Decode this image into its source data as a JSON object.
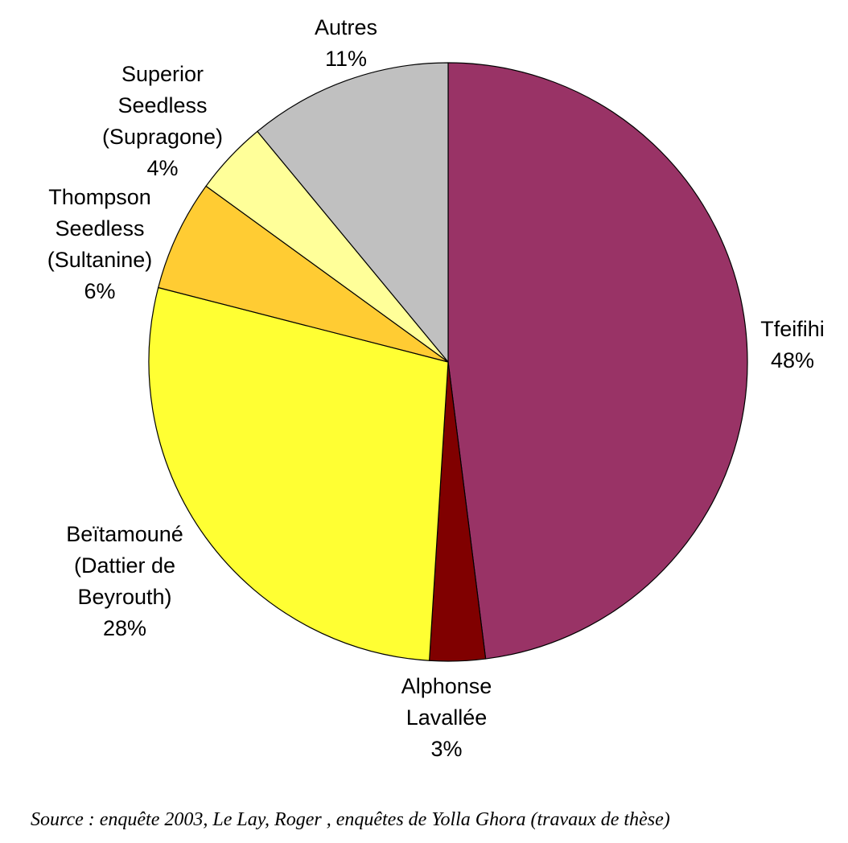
{
  "chart_data": {
    "type": "pie",
    "slices": [
      {
        "label": [
          "Tfeifihi"
        ],
        "percent_label": "48%",
        "value": 48,
        "color": "#993366"
      },
      {
        "label": [
          "Alphonse",
          "Lavallée"
        ],
        "percent_label": "3%",
        "value": 3,
        "color": "#800000"
      },
      {
        "label": [
          "Beïtamouné",
          "(Dattier de",
          "Beyrouth)"
        ],
        "percent_label": "28%",
        "value": 28,
        "color": "#FFFF33"
      },
      {
        "label": [
          "Thompson",
          "Seedless",
          "(Sultanine)"
        ],
        "percent_label": "6%",
        "value": 6,
        "color": "#FFCC33"
      },
      {
        "label": [
          "Superior",
          "Seedless",
          "(Supragone)"
        ],
        "percent_label": "4%",
        "value": 4,
        "color": "#FFFF99"
      },
      {
        "label": [
          "Autres"
        ],
        "percent_label": "11%",
        "value": 11,
        "color": "#C0C0C0"
      }
    ]
  },
  "source_note": "Source : enquête 2003, Le Lay, Roger , enquêtes de Yolla Ghora (travaux de thèse)"
}
